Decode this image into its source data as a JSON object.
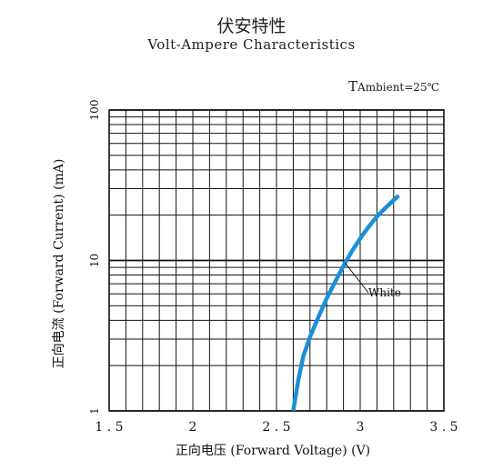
{
  "header": {
    "title_cn": "伏安特性",
    "title_en": "Volt-Ampere Characteristics"
  },
  "condition": {
    "prefix": "T",
    "text": "Ambient=25℃"
  },
  "colors": {
    "curve": "#1a8fd8",
    "grid": "#111111"
  },
  "chart_data": {
    "type": "line",
    "xlabel": "正向电压 (Forward Voltage) (V)",
    "ylabel": "正向电流 (Forward Current) (mA)",
    "xlim": [
      1.5,
      3.5
    ],
    "ylim": [
      1,
      100
    ],
    "yscale": "log",
    "grid": true,
    "x_ticks": [
      "1.5",
      "2",
      "2.5",
      "3",
      "3.5"
    ],
    "y_ticks": [
      "1",
      "10",
      "100"
    ],
    "series": [
      {
        "name": "White",
        "x": [
          2.6,
          2.63,
          2.66,
          2.7,
          2.75,
          2.8,
          2.85,
          2.9,
          2.95,
          3.0,
          3.05,
          3.1,
          3.15,
          3.2,
          3.23
        ],
        "y": [
          1.0,
          1.6,
          2.3,
          3.1,
          4.2,
          5.6,
          7.2,
          9.2,
          11.5,
          14.0,
          16.7,
          19.6,
          22.3,
          25.2,
          27.0
        ]
      }
    ]
  }
}
